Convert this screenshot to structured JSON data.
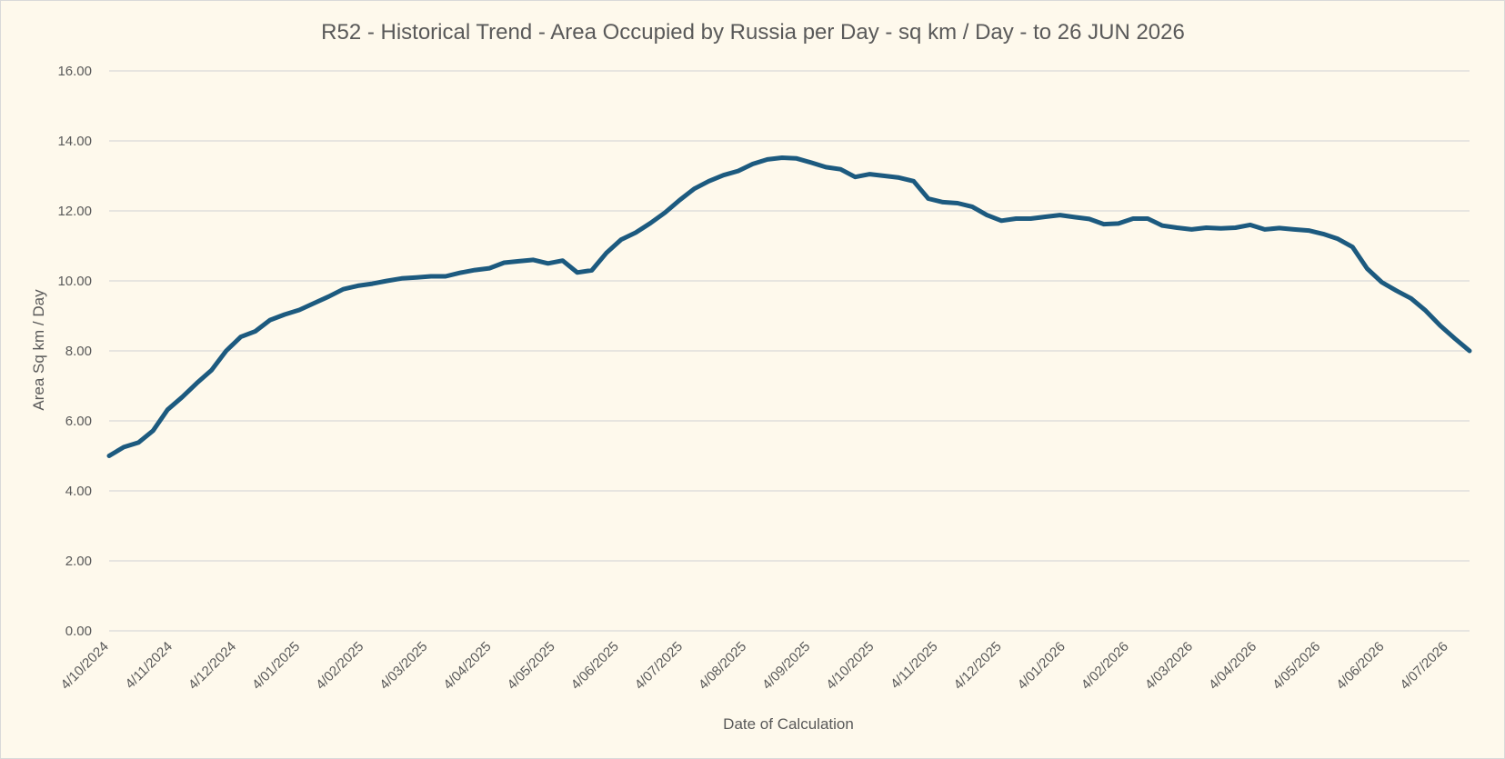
{
  "chart_data": {
    "type": "line",
    "title": "R52 - Historical Trend - Area Occupied by Russia per Day - sq km / Day - to 26 JUN 2026",
    "xlabel": "Date of Calculation",
    "ylabel": "Area Sq km / Day",
    "ylim": [
      0,
      16
    ],
    "yticks": [
      "0.00",
      "2.00",
      "4.00",
      "6.00",
      "8.00",
      "10.00",
      "12.00",
      "14.00",
      "16.00"
    ],
    "xticks": [
      "4/10/2024",
      "4/11/2024",
      "4/12/2024",
      "4/01/2025",
      "4/02/2025",
      "4/03/2025",
      "4/04/2025",
      "4/05/2025",
      "4/06/2025",
      "4/07/2025",
      "4/08/2025",
      "4/09/2025",
      "4/10/2025",
      "4/11/2025",
      "4/12/2025",
      "4/01/2026",
      "4/02/2026",
      "4/03/2026",
      "4/04/2026",
      "4/05/2026",
      "4/06/2026",
      "4/07/2026"
    ],
    "grid": true,
    "legend": "none",
    "line_color": "#1c5a7f",
    "series": [
      {
        "values": [
          5.0,
          5.25,
          5.38,
          5.72,
          6.32,
          6.68,
          7.08,
          7.45,
          8.0,
          8.4,
          8.56,
          8.88,
          9.04,
          9.17,
          9.36,
          9.55,
          9.76,
          9.86,
          9.92,
          10.0,
          10.07,
          10.1,
          10.13,
          10.13,
          10.23,
          10.31,
          10.36,
          10.52,
          10.56,
          10.6,
          10.5,
          10.58,
          10.24,
          10.3,
          10.8,
          11.18,
          11.38,
          11.65,
          11.95,
          12.31,
          12.63,
          12.85,
          13.02,
          13.14,
          13.34,
          13.47,
          13.52,
          13.5,
          13.38,
          13.25,
          13.19,
          12.97,
          13.05,
          13.0,
          12.95,
          12.85,
          12.35,
          12.25,
          12.22,
          12.12,
          11.88,
          11.72,
          11.78,
          11.78,
          11.83,
          11.88,
          11.82,
          11.77,
          11.62,
          11.64,
          11.78,
          11.78,
          11.58,
          11.52,
          11.47,
          11.52,
          11.5,
          11.52,
          11.6,
          11.47,
          11.51,
          11.47,
          11.44,
          11.34,
          11.2,
          10.97,
          10.35,
          9.96,
          9.72,
          9.5,
          9.15,
          8.72,
          8.35,
          8.0
        ]
      }
    ]
  }
}
